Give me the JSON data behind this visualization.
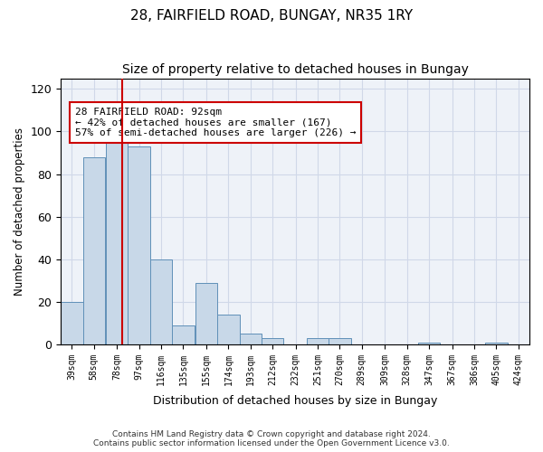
{
  "title": "28, FAIRFIELD ROAD, BUNGAY, NR35 1RY",
  "subtitle": "Size of property relative to detached houses in Bungay",
  "xlabel": "Distribution of detached houses by size in Bungay",
  "ylabel": "Number of detached properties",
  "footer_line1": "Contains HM Land Registry data © Crown copyright and database right 2024.",
  "footer_line2": "Contains public sector information licensed under the Open Government Licence v3.0.",
  "annotation_line1": "28 FAIRFIELD ROAD: 92sqm",
  "annotation_line2": "← 42% of detached houses are smaller (167)",
  "annotation_line3": "57% of semi-detached houses are larger (226) →",
  "bar_edges": [
    39,
    58,
    78,
    97,
    116,
    135,
    155,
    174,
    193,
    212,
    232,
    251,
    270,
    289,
    309,
    328,
    347,
    367,
    386,
    405,
    424
  ],
  "bar_heights": [
    20,
    88,
    95,
    93,
    40,
    9,
    29,
    14,
    5,
    3,
    0,
    3,
    3,
    0,
    0,
    0,
    1,
    0,
    0,
    1,
    0
  ],
  "bar_color": "#c8d8e8",
  "bar_edge_color": "#6090b8",
  "vline_x": 92,
  "vline_color": "#cc0000",
  "annotation_box_edge": "#cc0000",
  "ylim": [
    0,
    125
  ],
  "yticks": [
    0,
    20,
    40,
    60,
    80,
    100,
    120
  ],
  "grid_color": "#d0d8e8",
  "bg_color": "#eef2f8",
  "title_fontsize": 11,
  "subtitle_fontsize": 10
}
